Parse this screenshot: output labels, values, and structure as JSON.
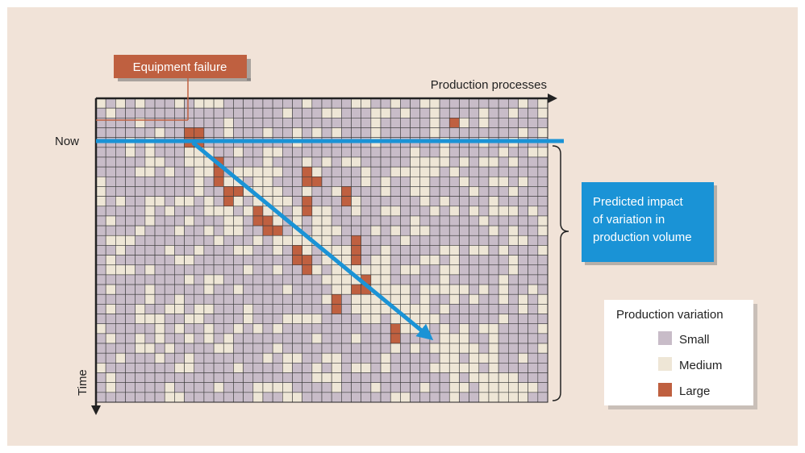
{
  "labels": {
    "failure_callout": "Equipment failure",
    "x_axis": "Production processes",
    "y_axis": "Time",
    "now_marker": "Now",
    "prediction_box": [
      "Predicted impact",
      "of variation in",
      "production volume"
    ]
  },
  "legend": {
    "title": "Production variation",
    "items": [
      {
        "key": "S",
        "label": "Small",
        "color": "#c8bcc8"
      },
      {
        "key": "M",
        "label": "Medium",
        "color": "#eee6d6"
      },
      {
        "key": "L",
        "label": "Large",
        "color": "#bf6040"
      }
    ]
  },
  "colors": {
    "background": "#f1e3d8",
    "grid_line": "#3a3a3a",
    "now_line": "#1a93d6",
    "prediction_box": "#1a93d6",
    "callout": "#bf6040",
    "axis": "#222222"
  },
  "grid": {
    "columns": 46,
    "rows": 31,
    "now_row": 4,
    "failure_column": 9,
    "large_cells": [
      [
        2,
        36
      ],
      [
        3,
        9
      ],
      [
        4,
        9
      ],
      [
        3,
        10
      ],
      [
        4,
        10
      ],
      [
        6,
        12
      ],
      [
        7,
        12
      ],
      [
        8,
        12
      ],
      [
        7,
        21
      ],
      [
        8,
        21
      ],
      [
        8,
        22
      ],
      [
        9,
        13
      ],
      [
        10,
        13
      ],
      [
        9,
        14
      ],
      [
        9,
        25
      ],
      [
        10,
        25
      ],
      [
        10,
        21
      ],
      [
        11,
        21
      ],
      [
        11,
        16
      ],
      [
        12,
        16
      ],
      [
        12,
        17
      ],
      [
        13,
        17
      ],
      [
        13,
        18
      ],
      [
        14,
        26
      ],
      [
        15,
        26
      ],
      [
        16,
        26
      ],
      [
        15,
        20
      ],
      [
        16,
        20
      ],
      [
        16,
        21
      ],
      [
        17,
        21
      ],
      [
        18,
        27
      ],
      [
        19,
        27
      ],
      [
        19,
        26
      ],
      [
        20,
        24
      ],
      [
        21,
        24
      ],
      [
        23,
        30
      ],
      [
        24,
        30
      ]
    ]
  }
}
